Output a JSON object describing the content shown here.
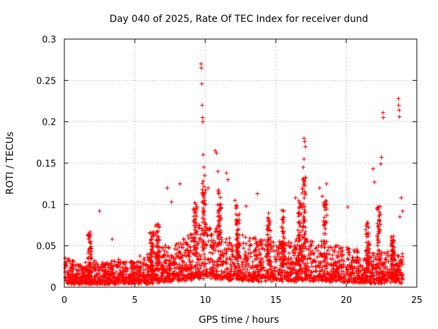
{
  "chart_data": {
    "type": "scatter",
    "title": "Day 040 of 2025, Rate Of TEC Index for receiver dund",
    "xlabel": "GPS time / hours",
    "ylabel": "ROTI / TECUs",
    "xlim": [
      0,
      25
    ],
    "ylim": [
      0,
      0.3
    ],
    "xticks": [
      "0",
      "5",
      "10",
      "15",
      "20",
      "25"
    ],
    "yticks": [
      "0",
      "0.05",
      "0.1",
      "0.15",
      "0.2",
      "0.25",
      "0.3"
    ],
    "grid": true,
    "marker": "+",
    "color": "#ff0000",
    "baseline": [
      {
        "x": 0.0,
        "y": 0.018
      },
      {
        "x": 0.5,
        "y": 0.016
      },
      {
        "x": 1.0,
        "y": 0.014
      },
      {
        "x": 1.5,
        "y": 0.013
      },
      {
        "x": 2.0,
        "y": 0.014
      },
      {
        "x": 2.5,
        "y": 0.014
      },
      {
        "x": 3.0,
        "y": 0.015
      },
      {
        "x": 3.5,
        "y": 0.015
      },
      {
        "x": 4.0,
        "y": 0.015
      },
      {
        "x": 4.5,
        "y": 0.015
      },
      {
        "x": 5.0,
        "y": 0.016
      },
      {
        "x": 5.5,
        "y": 0.017
      },
      {
        "x": 6.0,
        "y": 0.018
      },
      {
        "x": 6.5,
        "y": 0.02
      },
      {
        "x": 7.0,
        "y": 0.022
      },
      {
        "x": 7.5,
        "y": 0.024
      },
      {
        "x": 8.0,
        "y": 0.026
      },
      {
        "x": 8.5,
        "y": 0.028
      },
      {
        "x": 9.0,
        "y": 0.03
      },
      {
        "x": 9.5,
        "y": 0.035
      },
      {
        "x": 10.0,
        "y": 0.036
      },
      {
        "x": 10.5,
        "y": 0.034
      },
      {
        "x": 11.0,
        "y": 0.032
      },
      {
        "x": 11.5,
        "y": 0.03
      },
      {
        "x": 12.0,
        "y": 0.029
      },
      {
        "x": 13.0,
        "y": 0.028
      },
      {
        "x": 14.0,
        "y": 0.028
      },
      {
        "x": 15.0,
        "y": 0.027
      },
      {
        "x": 16.0,
        "y": 0.026
      },
      {
        "x": 17.0,
        "y": 0.028
      },
      {
        "x": 18.0,
        "y": 0.026
      },
      {
        "x": 19.0,
        "y": 0.024
      },
      {
        "x": 20.0,
        "y": 0.022
      },
      {
        "x": 21.0,
        "y": 0.021
      },
      {
        "x": 22.0,
        "y": 0.02
      },
      {
        "x": 23.0,
        "y": 0.02
      },
      {
        "x": 24.0,
        "y": 0.02
      }
    ],
    "notable_points": [
      {
        "x": 2.5,
        "y": 0.092
      },
      {
        "x": 3.4,
        "y": 0.058
      },
      {
        "x": 7.3,
        "y": 0.12
      },
      {
        "x": 7.6,
        "y": 0.103
      },
      {
        "x": 8.2,
        "y": 0.125
      },
      {
        "x": 9.7,
        "y": 0.27
      },
      {
        "x": 9.72,
        "y": 0.265
      },
      {
        "x": 9.75,
        "y": 0.246
      },
      {
        "x": 9.78,
        "y": 0.22
      },
      {
        "x": 9.8,
        "y": 0.205
      },
      {
        "x": 9.82,
        "y": 0.2
      },
      {
        "x": 9.85,
        "y": 0.16
      },
      {
        "x": 9.9,
        "y": 0.145
      },
      {
        "x": 9.95,
        "y": 0.135
      },
      {
        "x": 10.2,
        "y": 0.12
      },
      {
        "x": 10.7,
        "y": 0.165
      },
      {
        "x": 10.8,
        "y": 0.162
      },
      {
        "x": 10.9,
        "y": 0.14
      },
      {
        "x": 11.5,
        "y": 0.138
      },
      {
        "x": 11.6,
        "y": 0.13
      },
      {
        "x": 12.1,
        "y": 0.105
      },
      {
        "x": 12.9,
        "y": 0.098
      },
      {
        "x": 13.7,
        "y": 0.113
      },
      {
        "x": 16.4,
        "y": 0.108
      },
      {
        "x": 17.0,
        "y": 0.18
      },
      {
        "x": 17.05,
        "y": 0.176
      },
      {
        "x": 17.1,
        "y": 0.17
      },
      {
        "x": 17.0,
        "y": 0.155
      },
      {
        "x": 16.95,
        "y": 0.145
      },
      {
        "x": 18.1,
        "y": 0.12
      },
      {
        "x": 18.3,
        "y": 0.11
      },
      {
        "x": 18.6,
        "y": 0.125
      },
      {
        "x": 20.1,
        "y": 0.097
      },
      {
        "x": 21.9,
        "y": 0.143
      },
      {
        "x": 22.0,
        "y": 0.127
      },
      {
        "x": 22.5,
        "y": 0.157
      },
      {
        "x": 22.45,
        "y": 0.149
      },
      {
        "x": 22.6,
        "y": 0.211
      },
      {
        "x": 22.62,
        "y": 0.205
      },
      {
        "x": 23.7,
        "y": 0.228
      },
      {
        "x": 23.72,
        "y": 0.22
      },
      {
        "x": 23.75,
        "y": 0.214
      },
      {
        "x": 23.77,
        "y": 0.206
      },
      {
        "x": 23.9,
        "y": 0.108
      },
      {
        "x": 24.0,
        "y": 0.092
      },
      {
        "x": 23.8,
        "y": 0.085
      }
    ],
    "cluster_bursts": [
      {
        "x": 1.8,
        "ymax": 0.068
      },
      {
        "x": 6.2,
        "ymax": 0.07
      },
      {
        "x": 6.6,
        "ymax": 0.082
      },
      {
        "x": 9.3,
        "ymax": 0.105
      },
      {
        "x": 9.9,
        "ymax": 0.13
      },
      {
        "x": 11.0,
        "ymax": 0.12
      },
      {
        "x": 12.3,
        "ymax": 0.1
      },
      {
        "x": 14.5,
        "ymax": 0.09
      },
      {
        "x": 15.5,
        "ymax": 0.095
      },
      {
        "x": 16.7,
        "ymax": 0.105
      },
      {
        "x": 17.0,
        "ymax": 0.14
      },
      {
        "x": 18.5,
        "ymax": 0.105
      },
      {
        "x": 21.5,
        "ymax": 0.08
      },
      {
        "x": 22.3,
        "ymax": 0.1
      },
      {
        "x": 23.3,
        "ymax": 0.065
      }
    ]
  }
}
